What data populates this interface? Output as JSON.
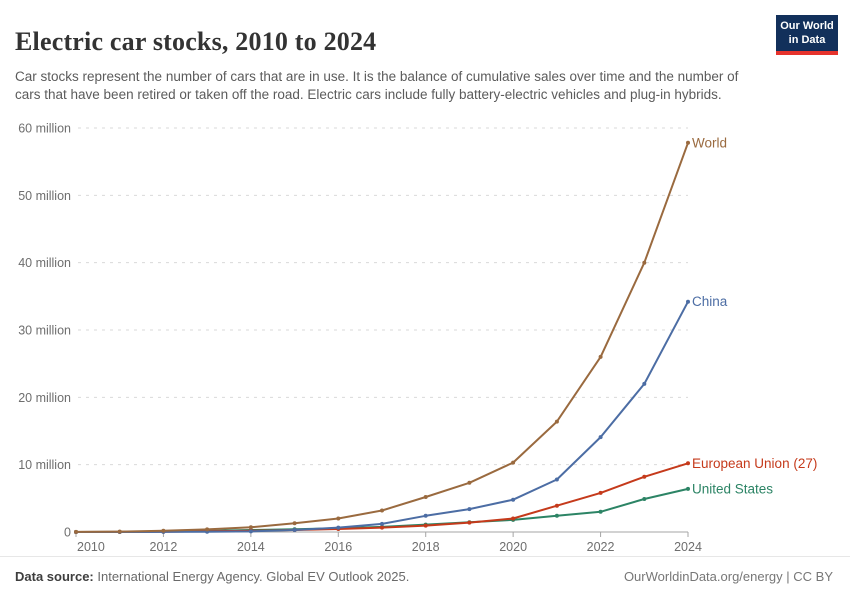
{
  "header": {
    "title": "Electric car stocks, 2010 to 2024",
    "subtitle": "Car stocks represent the number of cars that are in use. It is the balance of cumulative sales over time and the number of cars that have been retired or taken off the road. Electric cars include fully battery-electric vehicles and plug-in hybrids.",
    "logo_line1": "Our World",
    "logo_line2": "in Data"
  },
  "footer": {
    "source_label": "Data source:",
    "source_text": " International Energy Agency. Global EV Outlook 2025.",
    "right_text": "OurWorldinData.org/energy | CC BY"
  },
  "colors": {
    "logo_bg": "#12305B",
    "logo_stripe": "#E6332C",
    "grid": "#d9d9d9",
    "axis": "#a5a5a5",
    "tick_text": "#6e6e6e"
  },
  "chart_data": {
    "type": "line",
    "title": "Electric car stocks, 2010 to 2024",
    "unit": "million cars",
    "x": [
      2010,
      2011,
      2012,
      2013,
      2014,
      2015,
      2016,
      2017,
      2018,
      2019,
      2020,
      2021,
      2022,
      2023,
      2024
    ],
    "series": [
      {
        "name": "United States",
        "color": "#2C8465",
        "values": [
          0.004,
          0.02,
          0.07,
          0.17,
          0.29,
          0.4,
          0.56,
          0.76,
          1.1,
          1.45,
          1.8,
          2.4,
          3.0,
          4.9,
          6.4
        ]
      },
      {
        "name": "European Union (27)",
        "color": "#C53A1B",
        "values": [
          0.005,
          0.02,
          0.05,
          0.1,
          0.18,
          0.3,
          0.45,
          0.65,
          0.95,
          1.4,
          2.0,
          3.9,
          5.8,
          8.2,
          10.2
        ]
      },
      {
        "name": "China",
        "color": "#4C6DA4",
        "values": [
          0.002,
          0.007,
          0.017,
          0.03,
          0.09,
          0.3,
          0.65,
          1.2,
          2.4,
          3.4,
          4.8,
          7.8,
          14.1,
          22.0,
          34.2
        ]
      },
      {
        "name": "World",
        "color": "#9A6A3F",
        "values": [
          0.02,
          0.06,
          0.18,
          0.38,
          0.7,
          1.3,
          2.0,
          3.2,
          5.2,
          7.3,
          10.3,
          16.4,
          26.0,
          40.0,
          57.8
        ]
      }
    ],
    "ylim": [
      0,
      60
    ],
    "yticks": [
      {
        "v": 0,
        "label": "0"
      },
      {
        "v": 10,
        "label": "10 million"
      },
      {
        "v": 20,
        "label": "20 million"
      },
      {
        "v": 30,
        "label": "30 million"
      },
      {
        "v": 40,
        "label": "40 million"
      },
      {
        "v": 50,
        "label": "50 million"
      },
      {
        "v": 60,
        "label": "60 million"
      }
    ],
    "xticks": [
      2010,
      2012,
      2014,
      2016,
      2018,
      2020,
      2022,
      2024
    ],
    "grid": "horizontal-dashed",
    "legend_position": "end-of-line-labels-right"
  }
}
